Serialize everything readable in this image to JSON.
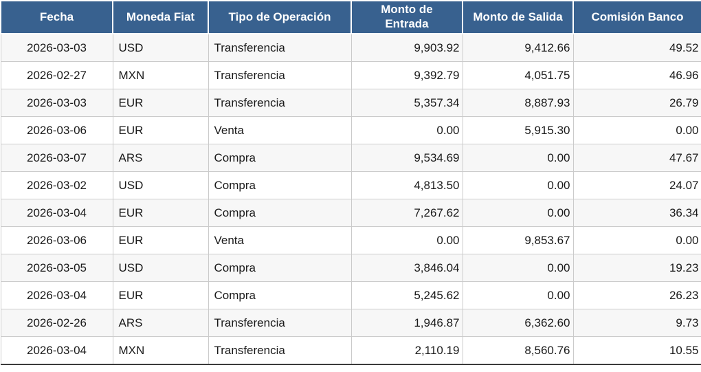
{
  "chart_data": {
    "type": "table",
    "columns": [
      "Fecha",
      "Moneda Fiat",
      "Tipo de Operación",
      "Monto de Entrada",
      "Monto de Salida",
      "Comisión Banco"
    ],
    "rows": [
      [
        "2026-03-03",
        "USD",
        "Transferencia",
        "9,903.92",
        "9,412.66",
        "49.52"
      ],
      [
        "2026-02-27",
        "MXN",
        "Transferencia",
        "9,392.79",
        "4,051.75",
        "46.96"
      ],
      [
        "2026-03-03",
        "EUR",
        "Transferencia",
        "5,357.34",
        "8,887.93",
        "26.79"
      ],
      [
        "2026-03-06",
        "EUR",
        "Venta",
        "0.00",
        "5,915.30",
        "0.00"
      ],
      [
        "2026-03-07",
        "ARS",
        "Compra",
        "9,534.69",
        "0.00",
        "47.67"
      ],
      [
        "2026-03-02",
        "USD",
        "Compra",
        "4,813.50",
        "0.00",
        "24.07"
      ],
      [
        "2026-03-04",
        "EUR",
        "Compra",
        "7,267.62",
        "0.00",
        "36.34"
      ],
      [
        "2026-03-06",
        "EUR",
        "Venta",
        "0.00",
        "9,853.67",
        "0.00"
      ],
      [
        "2026-03-05",
        "USD",
        "Compra",
        "3,846.04",
        "0.00",
        "19.23"
      ],
      [
        "2026-03-04",
        "EUR",
        "Compra",
        "5,245.62",
        "0.00",
        "26.23"
      ],
      [
        "2026-02-26",
        "ARS",
        "Transferencia",
        "1,946.87",
        "6,362.60",
        "9.73"
      ],
      [
        "2026-03-04",
        "MXN",
        "Transferencia",
        "2,110.19",
        "8,560.76",
        "10.55"
      ]
    ]
  },
  "colors": {
    "header_bg": "#38618F",
    "header_text": "#FFFFFF",
    "stripe_row_bg": "#F7F7F7",
    "plain_row_bg": "#FFFFFF",
    "cell_border": "#CBCBCB",
    "table_bottom_border": "#3B3B3B",
    "body_text": "#1A1A1A"
  }
}
